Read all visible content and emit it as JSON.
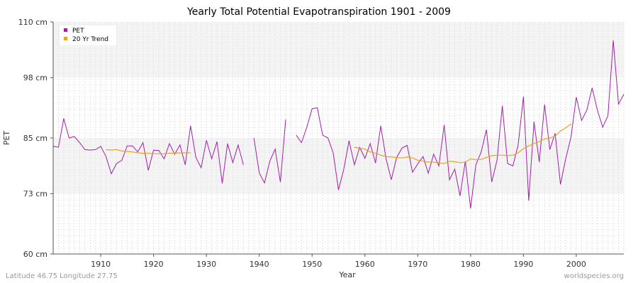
{
  "chart_data": {
    "type": "line",
    "title": "Yearly Total Potential Evapotranspiration 1901 - 2009",
    "xlabel": "Year",
    "ylabel": "PET",
    "xlim": [
      1901,
      2009
    ],
    "ylim": [
      60,
      110
    ],
    "y_ticks": [
      {
        "value": 60,
        "label": "60 cm"
      },
      {
        "value": 73,
        "label": "73 cm"
      },
      {
        "value": 85,
        "label": "85 cm"
      },
      {
        "value": 98,
        "label": "98 cm"
      },
      {
        "value": 110,
        "label": "110 cm"
      }
    ],
    "x_ticks": [
      1910,
      1920,
      1930,
      1940,
      1950,
      1960,
      1970,
      1980,
      1990,
      2000
    ],
    "grid": true,
    "legend_position": "top-left",
    "series": [
      {
        "name": "PET",
        "color": "#a020a8",
        "points": [
          [
            1901,
            83.2
          ],
          [
            1902,
            83.0
          ],
          [
            1903,
            89.2
          ],
          [
            1904,
            85.0
          ],
          [
            1905,
            85.3
          ],
          [
            1906,
            84.0
          ],
          [
            1907,
            82.5
          ],
          [
            1908,
            82.4
          ],
          [
            1909,
            82.5
          ],
          [
            1910,
            83.2
          ],
          [
            1911,
            81.0
          ],
          [
            1912,
            77.3
          ],
          [
            1913,
            79.5
          ],
          [
            1914,
            80.2
          ],
          [
            1915,
            83.3
          ],
          [
            1916,
            83.3
          ],
          [
            1917,
            82.0
          ],
          [
            1918,
            84.0
          ],
          [
            1919,
            78.0
          ],
          [
            1920,
            82.4
          ],
          [
            1921,
            82.3
          ],
          [
            1922,
            80.5
          ],
          [
            1923,
            83.8
          ],
          [
            1924,
            81.5
          ],
          [
            1925,
            83.5
          ],
          [
            1926,
            79.2
          ],
          [
            1927,
            87.6
          ],
          [
            1928,
            80.8
          ],
          [
            1929,
            78.6
          ],
          [
            1930,
            84.5
          ],
          [
            1931,
            80.5
          ],
          [
            1932,
            84.2
          ],
          [
            1933,
            75.2
          ],
          [
            1934,
            83.8
          ],
          [
            1935,
            79.7
          ],
          [
            1936,
            83.5
          ],
          [
            1937,
            79.2
          ],
          [
            1938,
            null
          ],
          [
            1939,
            85.0
          ],
          [
            1940,
            77.5
          ],
          [
            1941,
            75.3
          ],
          [
            1942,
            80.0
          ],
          [
            1943,
            82.6
          ],
          [
            1944,
            75.5
          ],
          [
            1945,
            89.0
          ],
          [
            1946,
            null
          ],
          [
            1947,
            85.6
          ],
          [
            1948,
            84.0
          ],
          [
            1949,
            87.3
          ],
          [
            1950,
            91.3
          ],
          [
            1951,
            91.5
          ],
          [
            1952,
            85.6
          ],
          [
            1953,
            85.0
          ],
          [
            1954,
            81.8
          ],
          [
            1955,
            73.8
          ],
          [
            1956,
            78.3
          ],
          [
            1957,
            84.4
          ],
          [
            1958,
            79.2
          ],
          [
            1959,
            83.0
          ],
          [
            1960,
            80.6
          ],
          [
            1961,
            83.8
          ],
          [
            1962,
            79.6
          ],
          [
            1963,
            87.6
          ],
          [
            1964,
            80.5
          ],
          [
            1965,
            76.0
          ],
          [
            1966,
            80.8
          ],
          [
            1967,
            82.8
          ],
          [
            1968,
            83.4
          ],
          [
            1969,
            77.6
          ],
          [
            1970,
            79.4
          ],
          [
            1971,
            81.0
          ],
          [
            1972,
            77.4
          ],
          [
            1973,
            81.5
          ],
          [
            1974,
            79.0
          ],
          [
            1975,
            87.8
          ],
          [
            1976,
            76.0
          ],
          [
            1977,
            78.3
          ],
          [
            1978,
            72.5
          ],
          [
            1979,
            80.0
          ],
          [
            1980,
            69.8
          ],
          [
            1981,
            79.2
          ],
          [
            1982,
            82.0
          ],
          [
            1983,
            86.8
          ],
          [
            1984,
            75.5
          ],
          [
            1985,
            80.2
          ],
          [
            1986,
            91.9
          ],
          [
            1987,
            79.5
          ],
          [
            1988,
            79.0
          ],
          [
            1989,
            83.5
          ],
          [
            1990,
            93.9
          ],
          [
            1991,
            71.5
          ],
          [
            1992,
            88.5
          ],
          [
            1993,
            79.8
          ],
          [
            1994,
            92.2
          ],
          [
            1995,
            82.5
          ],
          [
            1996,
            86.0
          ],
          [
            1997,
            75.0
          ],
          [
            1998,
            80.5
          ],
          [
            1999,
            85.2
          ],
          [
            2000,
            93.8
          ],
          [
            2001,
            88.8
          ],
          [
            2002,
            91.0
          ],
          [
            2003,
            95.8
          ],
          [
            2004,
            91.0
          ],
          [
            2005,
            87.3
          ],
          [
            2006,
            89.8
          ],
          [
            2007,
            106.0
          ],
          [
            2008,
            92.3
          ],
          [
            2009,
            94.4
          ]
        ]
      },
      {
        "name": "20 Yr Trend",
        "color": "#f0a020",
        "points": [
          [
            1911,
            82.5
          ],
          [
            1912,
            82.4
          ],
          [
            1913,
            82.5
          ],
          [
            1914,
            82.2
          ],
          [
            1915,
            82.1
          ],
          [
            1916,
            82.0
          ],
          [
            1917,
            81.8
          ],
          [
            1918,
            81.7
          ],
          [
            1919,
            81.7
          ],
          [
            1920,
            81.6
          ],
          [
            1921,
            81.6
          ],
          [
            1922,
            81.6
          ],
          [
            1923,
            81.7
          ],
          [
            1924,
            81.7
          ],
          [
            1925,
            81.8
          ],
          [
            1926,
            81.8
          ],
          [
            1927,
            81.8
          ],
          [
            1958,
            83.0
          ],
          [
            1959,
            82.8
          ],
          [
            1960,
            82.6
          ],
          [
            1961,
            82.0
          ],
          [
            1962,
            81.7
          ],
          [
            1963,
            81.3
          ],
          [
            1964,
            81.0
          ],
          [
            1965,
            80.9
          ],
          [
            1966,
            80.8
          ],
          [
            1967,
            80.7
          ],
          [
            1968,
            80.9
          ],
          [
            1969,
            80.7
          ],
          [
            1970,
            80.2
          ],
          [
            1971,
            80.0
          ],
          [
            1972,
            79.8
          ],
          [
            1973,
            79.8
          ],
          [
            1974,
            79.6
          ],
          [
            1975,
            79.5
          ],
          [
            1976,
            80.0
          ],
          [
            1977,
            79.9
          ],
          [
            1978,
            79.7
          ],
          [
            1979,
            79.8
          ],
          [
            1980,
            80.5
          ],
          [
            1981,
            80.3
          ],
          [
            1982,
            80.4
          ],
          [
            1983,
            80.8
          ],
          [
            1984,
            81.2
          ],
          [
            1985,
            81.3
          ],
          [
            1986,
            81.3
          ],
          [
            1987,
            81.2
          ],
          [
            1988,
            81.3
          ],
          [
            1989,
            81.8
          ],
          [
            1990,
            82.7
          ],
          [
            1991,
            83.3
          ],
          [
            1992,
            83.8
          ],
          [
            1993,
            84.2
          ],
          [
            1994,
            84.8
          ],
          [
            1995,
            85.0
          ],
          [
            1996,
            85.4
          ],
          [
            1997,
            86.5
          ],
          [
            1998,
            87.2
          ],
          [
            1999,
            88.0
          ]
        ]
      }
    ]
  },
  "footer": {
    "left": "Latitude 46.75 Longitude 27.75",
    "right": "worldspecies.org"
  },
  "colors": {
    "plot_bg_light": "#ffffff",
    "plot_bg_band": "#f4f4f4",
    "grid": "#e2e2e2",
    "axis": "#555555"
  }
}
